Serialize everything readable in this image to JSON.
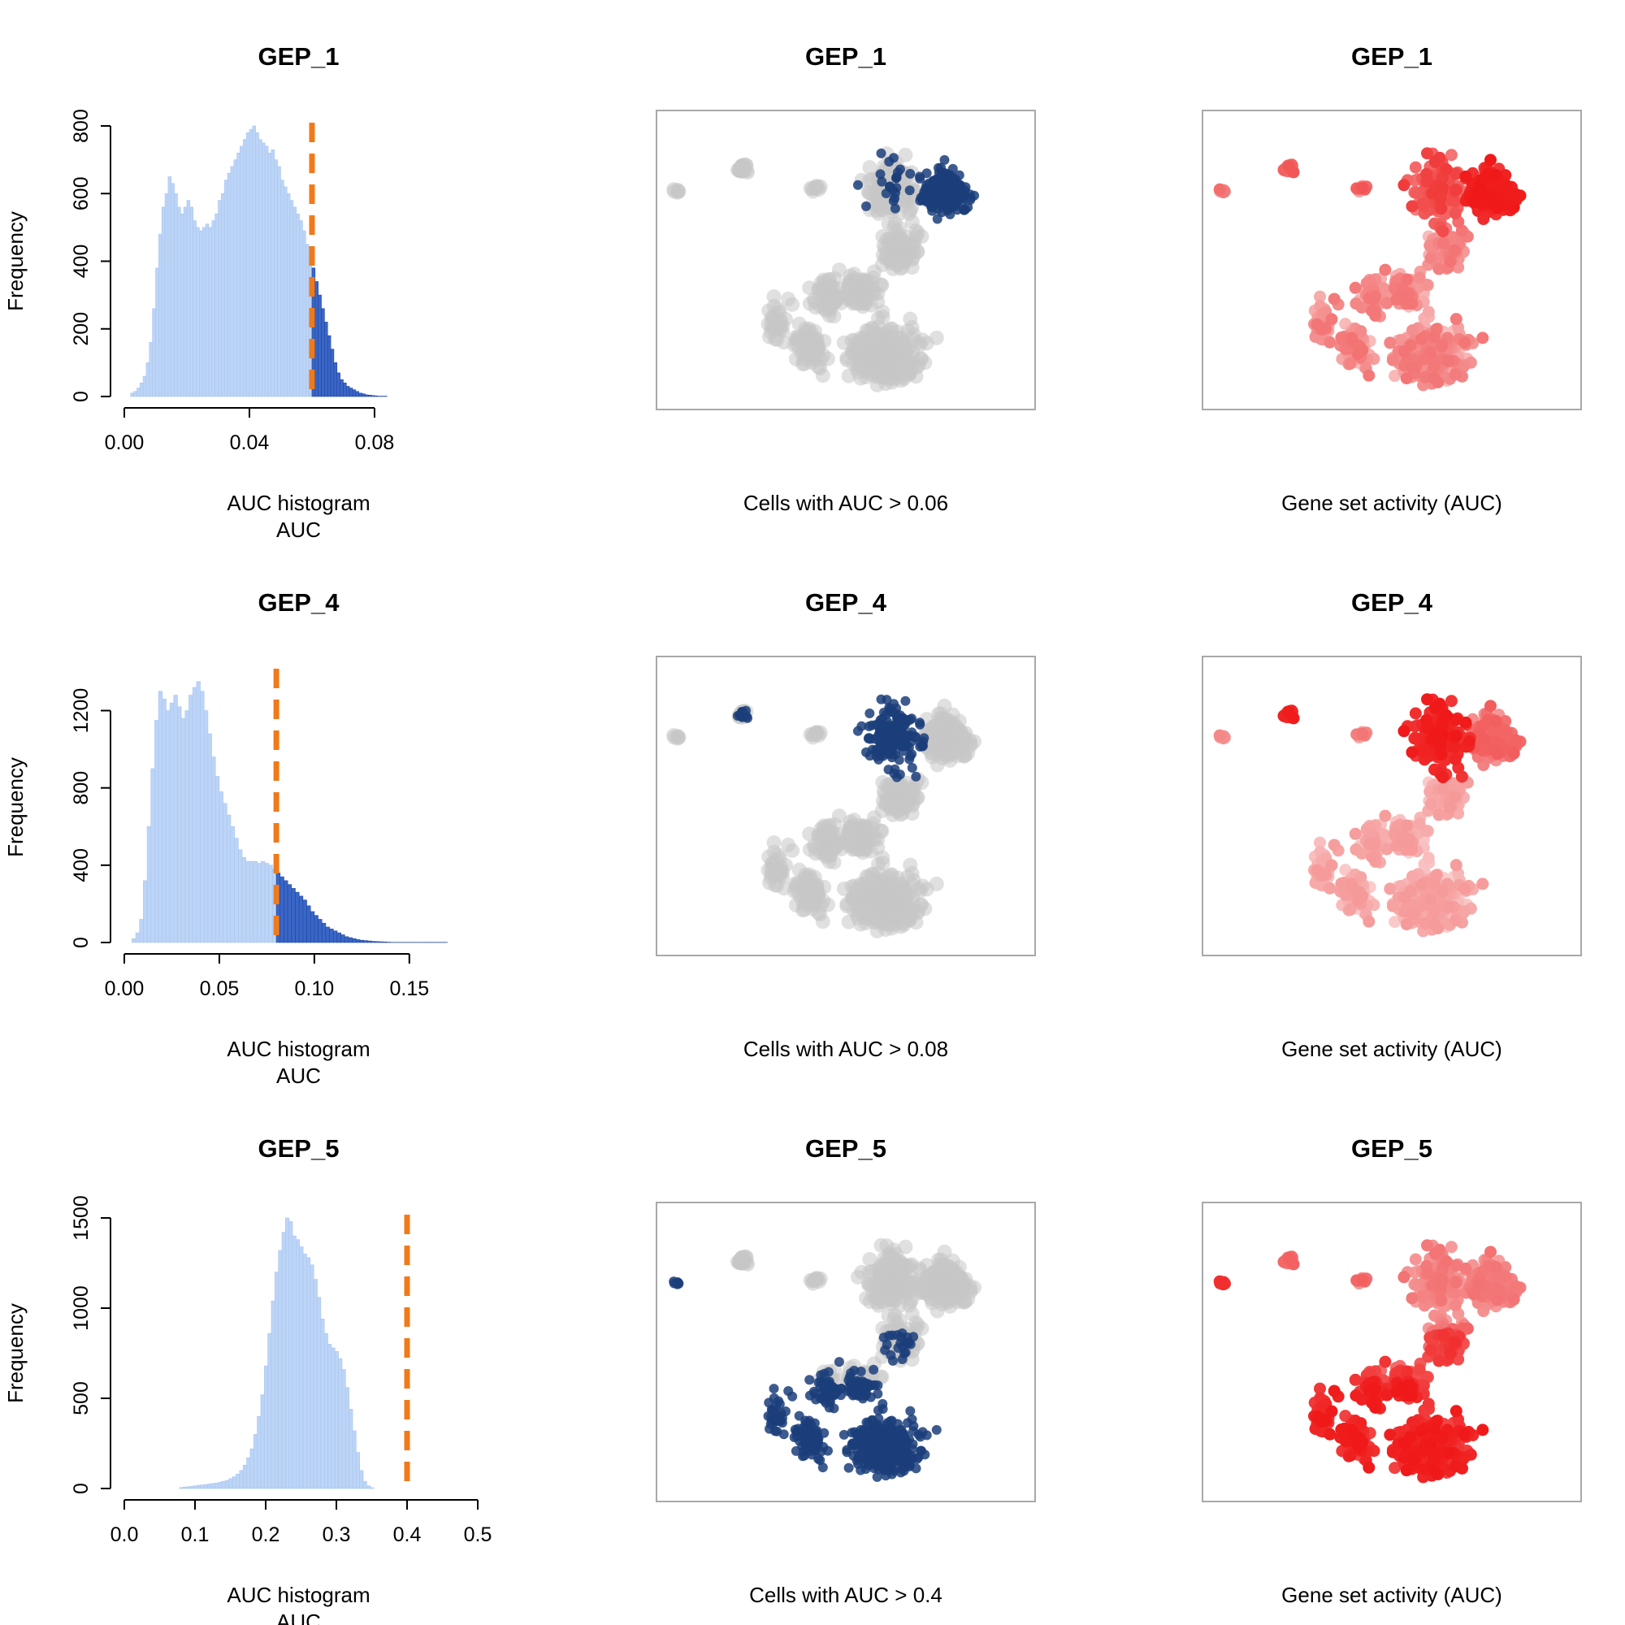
{
  "chart_data": [
    {
      "type": "bar",
      "panel": "histogram",
      "title": "GEP_1",
      "subtitle": "AUC histogram",
      "xlabel": "AUC",
      "ylabel": "Frequency",
      "xlim": [
        0,
        0.113
      ],
      "ylim": [
        0,
        800
      ],
      "xticks": [
        "0.00",
        "0.04",
        "0.08"
      ],
      "xtick_values": [
        0,
        0.04,
        0.08
      ],
      "yticks": [
        "0",
        "200",
        "400",
        "600",
        "800"
      ],
      "ytick_values": [
        0,
        200,
        400,
        600,
        800
      ],
      "threshold": 0.06,
      "bin_start": 0.002,
      "bin_width": 0.001,
      "values": [
        10,
        15,
        25,
        40,
        60,
        100,
        160,
        260,
        380,
        480,
        560,
        600,
        650,
        630,
        600,
        560,
        540,
        560,
        580,
        560,
        520,
        500,
        490,
        500,
        510,
        500,
        520,
        540,
        580,
        600,
        640,
        660,
        680,
        700,
        720,
        740,
        760,
        780,
        790,
        800,
        780,
        760,
        750,
        740,
        720,
        730,
        700,
        680,
        640,
        620,
        600,
        580,
        560,
        540,
        520,
        490,
        450,
        420,
        380,
        340,
        300,
        260,
        220,
        180,
        140,
        100,
        70,
        50,
        40,
        30,
        25,
        20,
        15,
        10,
        8,
        5,
        4,
        3,
        2,
        1,
        1,
        1
      ]
    },
    {
      "type": "scatter",
      "panel": "binary",
      "title": "GEP_1",
      "subtitle": "Cells with AUC > 0.06",
      "region": "top"
    },
    {
      "type": "scatter",
      "panel": "activity",
      "title": "GEP_1",
      "subtitle": "Gene set activity (AUC)",
      "region": "top"
    },
    {
      "type": "bar",
      "panel": "histogram",
      "title": "GEP_4",
      "subtitle": "AUC histogram",
      "xlabel": "AUC",
      "ylabel": "Frequency",
      "xlim": [
        0,
        0.186
      ],
      "ylim": [
        0,
        1400
      ],
      "xticks": [
        "0.00",
        "0.05",
        "0.10",
        "0.15"
      ],
      "xtick_values": [
        0,
        0.05,
        0.1,
        0.15
      ],
      "yticks": [
        "0",
        "400",
        "800",
        "1200"
      ],
      "ytick_values": [
        0,
        400,
        800,
        1200
      ],
      "threshold": 0.08,
      "bin_start": 0.004,
      "bin_width": 0.002,
      "values": [
        20,
        50,
        120,
        320,
        600,
        900,
        1150,
        1300,
        1260,
        1200,
        1240,
        1280,
        1220,
        1160,
        1200,
        1280,
        1320,
        1350,
        1300,
        1200,
        1080,
        960,
        860,
        780,
        720,
        660,
        600,
        540,
        480,
        440,
        420,
        420,
        420,
        410,
        420,
        410,
        400,
        380,
        360,
        340,
        320,
        300,
        280,
        260,
        240,
        220,
        190,
        160,
        140,
        120,
        100,
        80,
        70,
        60,
        50,
        40,
        30,
        25,
        20,
        15,
        12,
        10,
        8,
        6,
        5,
        4,
        3,
        2,
        1,
        1,
        1,
        1,
        1,
        1,
        1,
        1,
        1,
        1,
        1,
        1,
        1,
        1,
        1
      ]
    },
    {
      "type": "scatter",
      "panel": "binary",
      "title": "GEP_4",
      "subtitle": "Cells with AUC > 0.08",
      "region": "top-left"
    },
    {
      "type": "scatter",
      "panel": "activity",
      "title": "GEP_4",
      "subtitle": "Gene set activity (AUC)",
      "region": "top-left"
    },
    {
      "type": "bar",
      "panel": "histogram",
      "title": "GEP_5",
      "subtitle": "AUC histogram",
      "xlabel": "AUC",
      "ylabel": "Frequency",
      "xlim": [
        0,
        0.5
      ],
      "ylim": [
        0,
        1500
      ],
      "xticks": [
        "0.0",
        "0.1",
        "0.2",
        "0.3",
        "0.4",
        "0.5"
      ],
      "xtick_values": [
        0,
        0.1,
        0.2,
        0.3,
        0.4,
        0.5
      ],
      "yticks": [
        "0",
        "500",
        "1000",
        "1500"
      ],
      "ytick_values": [
        0,
        500,
        1000,
        1500
      ],
      "threshold": 0.4,
      "bin_start": 0.078,
      "bin_width": 0.005,
      "values": [
        5,
        8,
        10,
        12,
        15,
        18,
        20,
        22,
        25,
        28,
        30,
        35,
        40,
        45,
        55,
        65,
        80,
        100,
        130,
        170,
        220,
        300,
        400,
        520,
        680,
        860,
        1040,
        1200,
        1320,
        1420,
        1500,
        1480,
        1400,
        1380,
        1340,
        1300,
        1280,
        1240,
        1160,
        1060,
        940,
        860,
        800,
        780,
        760,
        720,
        660,
        560,
        440,
        320,
        200,
        100,
        40,
        15,
        5
      ]
    },
    {
      "type": "scatter",
      "panel": "binary",
      "title": "GEP_5",
      "subtitle": "Cells with AUC > 0.4",
      "region": "bottom"
    },
    {
      "type": "scatter",
      "panel": "activity",
      "title": "GEP_5",
      "subtitle": "Gene set activity (AUC)",
      "region": "bottom"
    }
  ],
  "colors": {
    "bar_below": "#bcd4f6",
    "bar_above": "#3a66c7",
    "bar_above_edge": "#1f45a0",
    "threshold_line": "#f07a1a",
    "cell_inactive": "#c6c6c6",
    "cell_selected": "#1b3e7a",
    "activity_low": "#fbd6d6",
    "activity_mid": "#f48a8a",
    "activity_high": "#f01818",
    "frame": "#a8a8a8"
  }
}
